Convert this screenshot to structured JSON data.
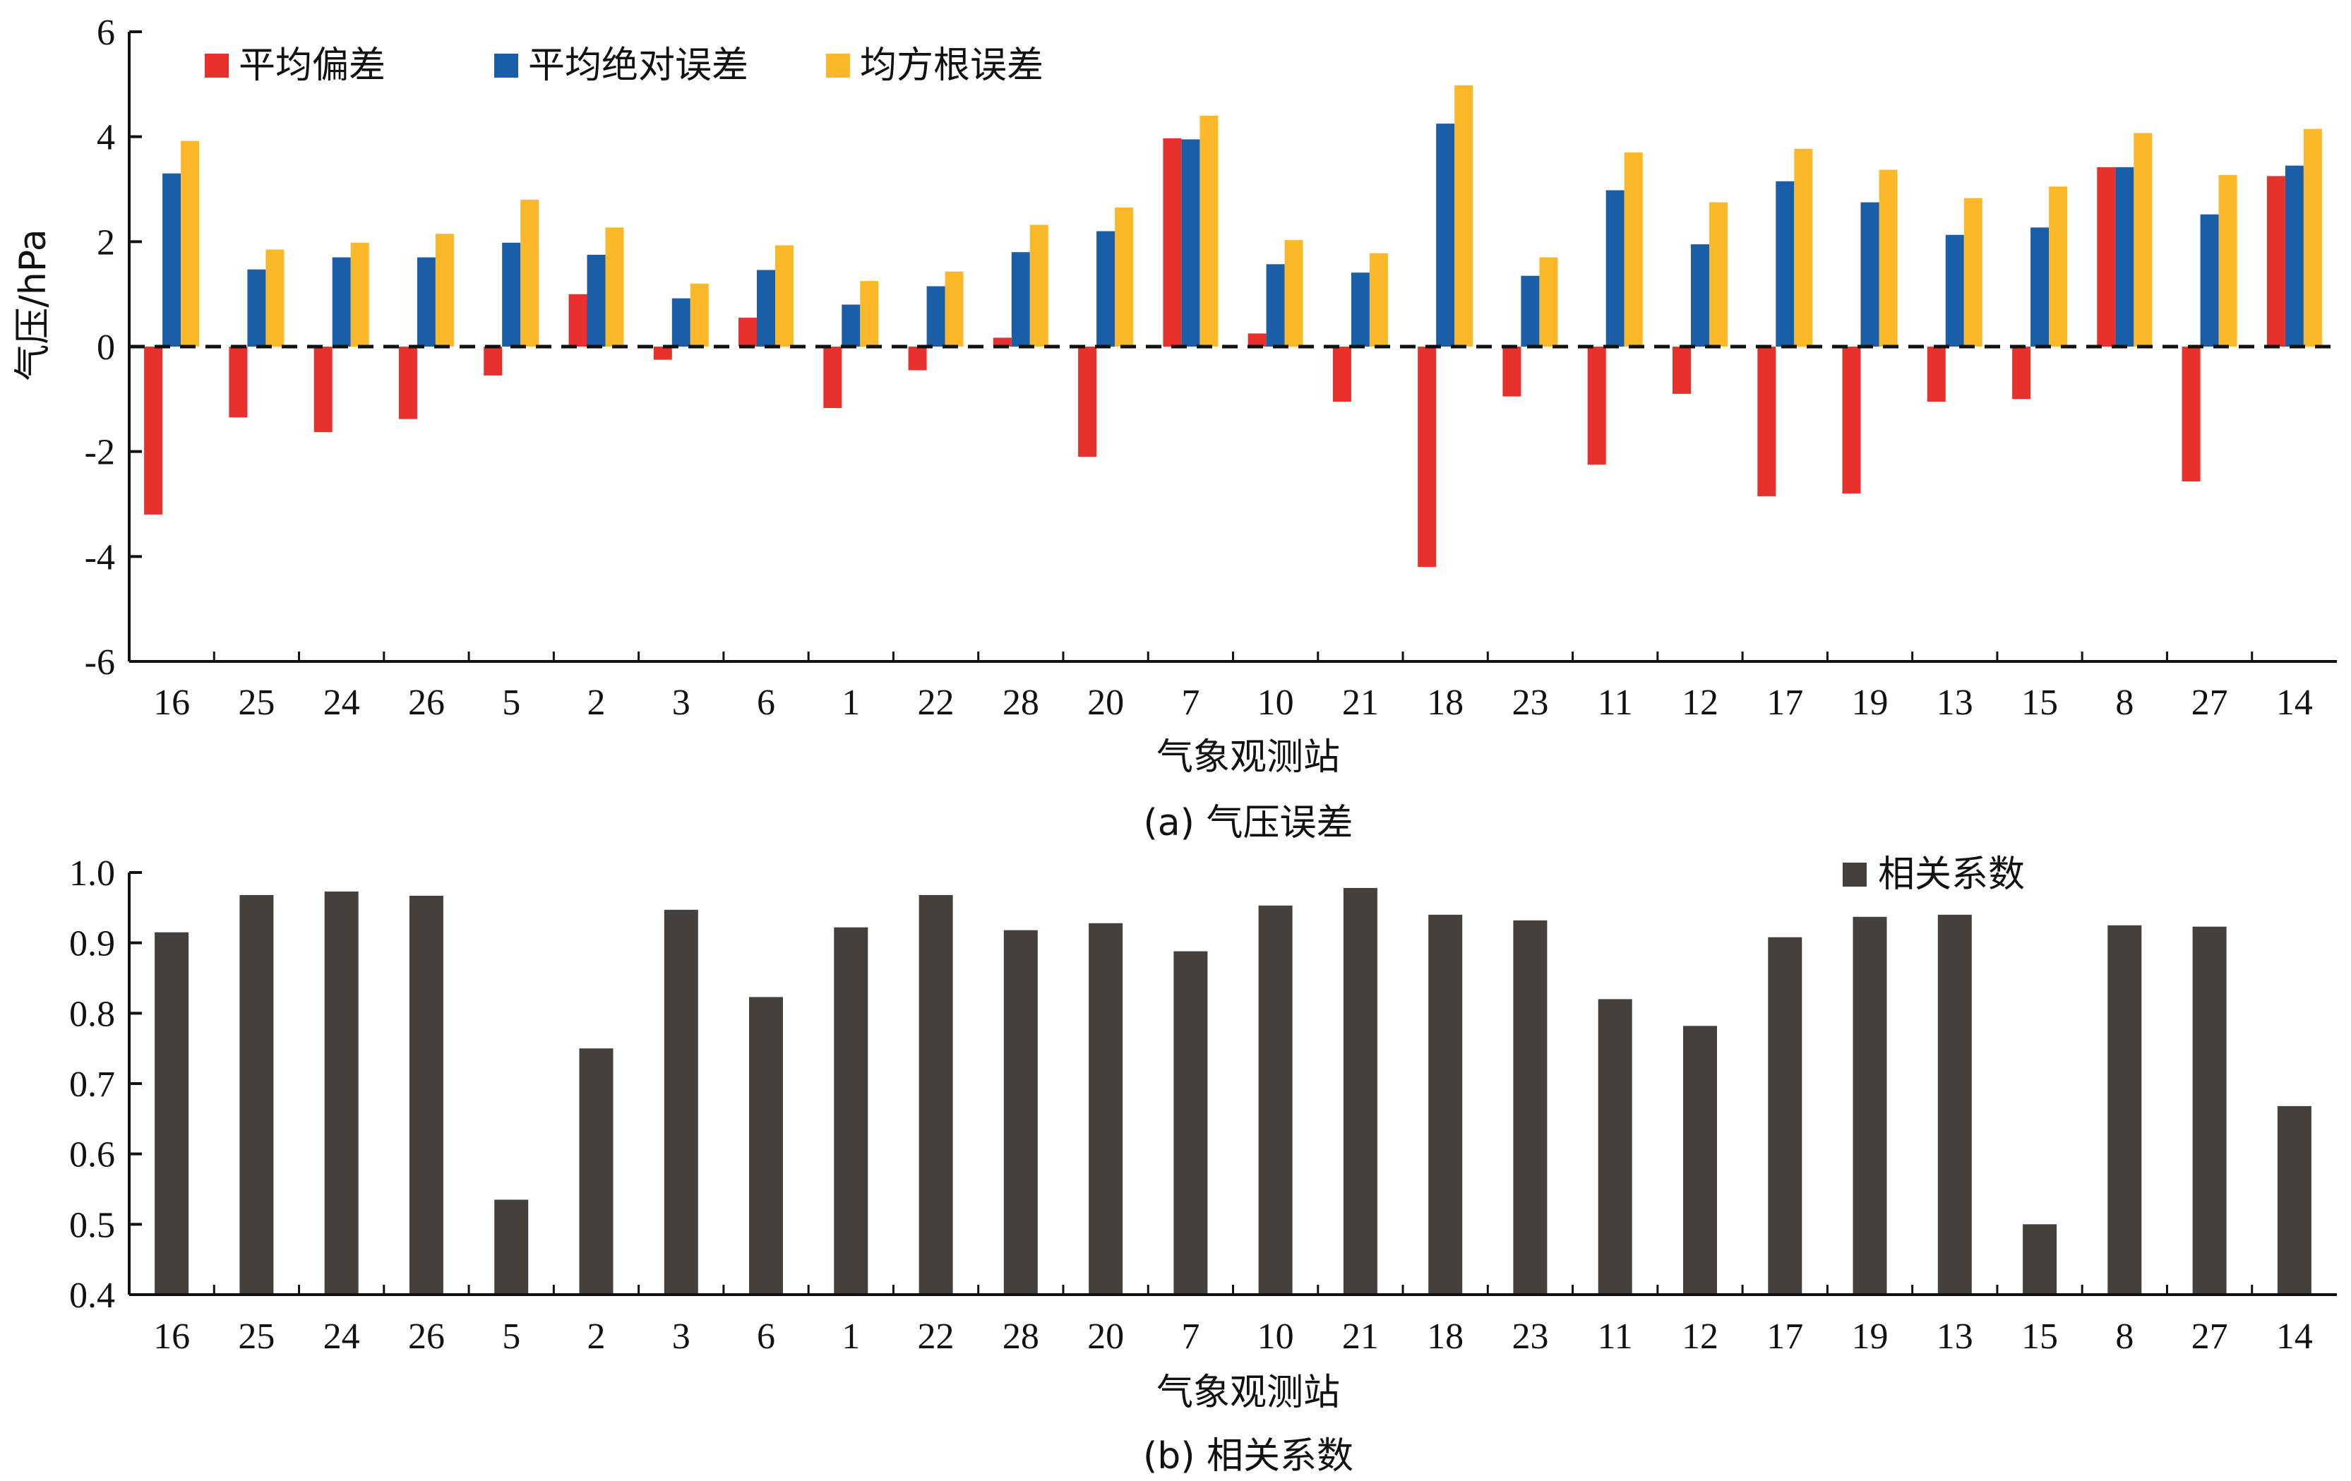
{
  "chart_data": [
    {
      "type": "bar",
      "caption": "(a) 气压误差",
      "xlabel": "气象观测站",
      "ylabel": "气压/hPa",
      "ylim": [
        -6,
        6
      ],
      "yticks": [
        6,
        4,
        2,
        0,
        -2,
        -4,
        -6
      ],
      "zero_line": "dashed",
      "legend_position": "top-left",
      "categories": [
        "16",
        "25",
        "24",
        "26",
        "5",
        "2",
        "3",
        "6",
        "1",
        "22",
        "28",
        "20",
        "7",
        "10",
        "21",
        "18",
        "23",
        "11",
        "12",
        "17",
        "19",
        "13",
        "15",
        "8",
        "27",
        "14"
      ],
      "series": [
        {
          "name": "平均偏差",
          "color": "#e8302d",
          "values": [
            -3.2,
            -1.35,
            -1.63,
            -1.38,
            -0.55,
            1.0,
            -0.25,
            0.55,
            -1.17,
            -0.45,
            0.17,
            -2.1,
            3.97,
            0.25,
            -1.05,
            -4.2,
            -0.95,
            -2.25,
            -0.9,
            -2.85,
            -2.8,
            -1.05,
            -1.0,
            3.42,
            -2.57,
            3.25
          ]
        },
        {
          "name": "平均绝对误差",
          "color": "#1a5ea8",
          "values": [
            3.3,
            1.47,
            1.7,
            1.7,
            1.98,
            1.75,
            0.92,
            1.46,
            0.8,
            1.15,
            1.8,
            2.2,
            3.95,
            1.57,
            1.41,
            4.25,
            1.35,
            2.98,
            1.95,
            3.15,
            2.75,
            2.13,
            2.27,
            3.42,
            2.52,
            3.45
          ]
        },
        {
          "name": "均方根误差",
          "color": "#fbb829",
          "values": [
            3.92,
            1.85,
            1.98,
            2.15,
            2.8,
            2.27,
            1.2,
            1.93,
            1.25,
            1.43,
            2.32,
            2.65,
            4.4,
            2.03,
            1.78,
            4.98,
            1.7,
            3.7,
            2.75,
            3.77,
            3.37,
            2.83,
            3.05,
            4.07,
            3.27,
            4.15
          ]
        }
      ]
    },
    {
      "type": "bar",
      "caption": "(b) 相关系数",
      "xlabel": "气象观测站",
      "ylabel": "",
      "ylim": [
        0.4,
        1.0
      ],
      "yticks": [
        "1.0",
        "0.9",
        "0.8",
        "0.7",
        "0.6",
        "0.5",
        "0.4"
      ],
      "legend_position": "top-right",
      "categories": [
        "16",
        "25",
        "24",
        "26",
        "5",
        "2",
        "3",
        "6",
        "1",
        "22",
        "28",
        "20",
        "7",
        "10",
        "21",
        "18",
        "23",
        "11",
        "12",
        "17",
        "19",
        "13",
        "15",
        "8",
        "27",
        "14"
      ],
      "series": [
        {
          "name": "相关系数",
          "color": "#45403b",
          "values": [
            0.915,
            0.968,
            0.973,
            0.967,
            0.535,
            0.75,
            0.947,
            0.823,
            0.922,
            0.968,
            0.918,
            0.928,
            0.888,
            0.953,
            0.978,
            0.94,
            0.932,
            0.82,
            0.782,
            0.908,
            0.937,
            0.94,
            0.5,
            0.925,
            0.923,
            0.668
          ]
        }
      ]
    }
  ]
}
